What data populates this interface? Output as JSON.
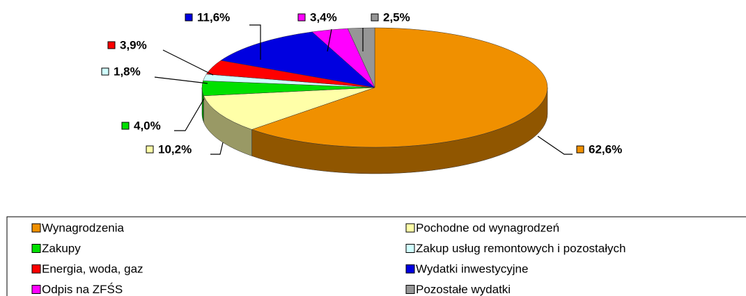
{
  "chart_data": {
    "type": "pie",
    "categories": [
      "Wynagrodzenia",
      "Pochodne od wynagrodzeń",
      "Zakupy",
      "Zakup usług remontowych i pozostałych",
      "Energia, woda, gaz",
      "Wydatki inwestycyjne",
      "Odpis na ZFŚS",
      "Pozostałe wydatki"
    ],
    "values": [
      62.6,
      10.2,
      4.0,
      1.8,
      3.9,
      11.6,
      3.4,
      2.5
    ],
    "value_labels": [
      "62,6%",
      "10,2%",
      "4,0%",
      "1,8%",
      "3,9%",
      "11,6%",
      "3,4%",
      "2,5%"
    ],
    "colors": [
      "#f09000",
      "#ffffa8",
      "#00e000",
      "#d0ffff",
      "#ff0000",
      "#0000e0",
      "#ff00ff",
      "#969696"
    ],
    "legend": "bottom"
  }
}
